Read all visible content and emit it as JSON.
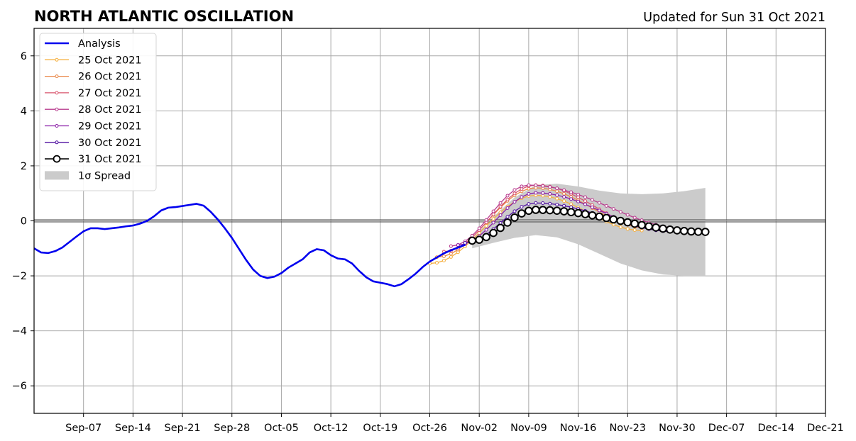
{
  "chart_data": {
    "type": "line",
    "title": "NORTH ATLANTIC OSCILLATION",
    "subtitle": "Updated for Sun 31 Oct 2021",
    "xlabel": "",
    "ylabel": "",
    "xlim": [
      "2021-08-31",
      "2021-12-21"
    ],
    "ylim": [
      -7,
      7
    ],
    "x_ticks": [
      "Sep-07",
      "Sep-14",
      "Sep-21",
      "Sep-28",
      "Oct-05",
      "Oct-12",
      "Oct-19",
      "Oct-26",
      "Nov-02",
      "Nov-09",
      "Nov-16",
      "Nov-23",
      "Nov-30",
      "Dec-07",
      "Dec-14",
      "Dec-21"
    ],
    "x_tick_dates": [
      "2021-09-07",
      "2021-09-14",
      "2021-09-21",
      "2021-09-28",
      "2021-10-05",
      "2021-10-12",
      "2021-10-19",
      "2021-10-26",
      "2021-11-02",
      "2021-11-09",
      "2021-11-16",
      "2021-11-23",
      "2021-11-30",
      "2021-12-07",
      "2021-12-14",
      "2021-12-21"
    ],
    "y_ticks": [
      "6",
      "4",
      "2",
      "0",
      "−2",
      "−4",
      "−6"
    ],
    "y_tick_values": [
      6,
      4,
      2,
      0,
      -2,
      -4,
      -6
    ],
    "grid": true,
    "legend_position": "top-left",
    "legend": [
      "Analysis",
      "25 Oct 2021",
      "26 Oct 2021",
      "27 Oct 2021",
      "28 Oct 2021",
      "29 Oct 2021",
      "30 Oct 2021",
      "31 Oct 2021",
      "1σ Spread"
    ],
    "analysis": {
      "name": "Analysis",
      "color": "#0000ee",
      "x": [
        "2021-08-31",
        "2021-09-01",
        "2021-09-02",
        "2021-09-03",
        "2021-09-04",
        "2021-09-05",
        "2021-09-06",
        "2021-09-07",
        "2021-09-08",
        "2021-09-09",
        "2021-09-10",
        "2021-09-11",
        "2021-09-12",
        "2021-09-13",
        "2021-09-14",
        "2021-09-15",
        "2021-09-16",
        "2021-09-17",
        "2021-09-18",
        "2021-09-19",
        "2021-09-20",
        "2021-09-21",
        "2021-09-22",
        "2021-09-23",
        "2021-09-24",
        "2021-09-25",
        "2021-09-26",
        "2021-09-27",
        "2021-09-28",
        "2021-09-29",
        "2021-09-30",
        "2021-10-01",
        "2021-10-02",
        "2021-10-03",
        "2021-10-04",
        "2021-10-05",
        "2021-10-06",
        "2021-10-07",
        "2021-10-08",
        "2021-10-09",
        "2021-10-10",
        "2021-10-11",
        "2021-10-12",
        "2021-10-13",
        "2021-10-14",
        "2021-10-15",
        "2021-10-16",
        "2021-10-17",
        "2021-10-18",
        "2021-10-19",
        "2021-10-20",
        "2021-10-21",
        "2021-10-22",
        "2021-10-23",
        "2021-10-24",
        "2021-10-25",
        "2021-10-26",
        "2021-10-27",
        "2021-10-28",
        "2021-10-29",
        "2021-10-30",
        "2021-10-31"
      ],
      "y": [
        -1.0,
        -1.15,
        -1.17,
        -1.1,
        -0.97,
        -0.77,
        -0.57,
        -0.38,
        -0.27,
        -0.27,
        -0.3,
        -0.27,
        -0.24,
        -0.2,
        -0.17,
        -0.1,
        0.0,
        0.17,
        0.38,
        0.48,
        0.5,
        0.54,
        0.58,
        0.62,
        0.55,
        0.33,
        0.05,
        -0.27,
        -0.62,
        -1.02,
        -1.42,
        -1.77,
        -2.0,
        -2.08,
        -2.03,
        -1.9,
        -1.7,
        -1.55,
        -1.4,
        -1.15,
        -1.03,
        -1.07,
        -1.25,
        -1.37,
        -1.4,
        -1.55,
        -1.82,
        -2.05,
        -2.2,
        -2.25,
        -2.3,
        -2.38,
        -2.3,
        -2.12,
        -1.92,
        -1.68,
        -1.48,
        -1.33,
        -1.18,
        -1.07,
        -0.97,
        -0.87
      ]
    },
    "spread": {
      "name": "1σ Spread",
      "color": "#cbcbcb",
      "x": [
        "2021-11-01",
        "2021-11-04",
        "2021-11-07",
        "2021-11-10",
        "2021-11-13",
        "2021-11-16",
        "2021-11-19",
        "2021-11-22",
        "2021-11-25",
        "2021-11-28",
        "2021-12-01",
        "2021-12-04"
      ],
      "upper": [
        -0.65,
        0.15,
        0.85,
        1.3,
        1.35,
        1.25,
        1.1,
        1.0,
        0.97,
        1.0,
        1.08,
        1.2
      ],
      "lower": [
        -1.0,
        -0.8,
        -0.62,
        -0.52,
        -0.6,
        -0.85,
        -1.2,
        -1.55,
        -1.8,
        -1.95,
        -2.0,
        -2.0
      ]
    },
    "series": [
      {
        "name": "25 Oct 2021",
        "color": "#f5b041",
        "start": "2021-10-26",
        "end": "2021-11-25",
        "y0": -1.55,
        "peak_date": "2021-11-10",
        "peak": 0.93,
        "y_end": -0.35
      },
      {
        "name": "26 Oct 2021",
        "color": "#e9894a",
        "start": "2021-10-27",
        "end": "2021-11-26",
        "y0": -1.32,
        "peak_date": "2021-11-10",
        "peak": 1.2,
        "y_end": -0.27
      },
      {
        "name": "27 Oct 2021",
        "color": "#d9546c",
        "start": "2021-10-28",
        "end": "2021-11-27",
        "y0": -1.12,
        "peak_date": "2021-11-10",
        "peak": 1.3,
        "y_end": -0.3
      },
      {
        "name": "28 Oct 2021",
        "color": "#b83b8e",
        "start": "2021-10-29",
        "end": "2021-12-02",
        "y0": -0.92,
        "peak_date": "2021-11-09",
        "peak": 1.3,
        "y_end": -0.32
      },
      {
        "name": "29 Oct 2021",
        "color": "#8b1fa7",
        "start": "2021-10-30",
        "end": "2021-11-29",
        "y0": -0.88,
        "peak_date": "2021-11-10",
        "peak": 1.02,
        "y_end": -0.38
      },
      {
        "name": "30 Oct 2021",
        "color": "#4f0fa0",
        "start": "2021-10-31",
        "end": "2021-11-30",
        "y0": -0.8,
        "peak_date": "2021-11-10",
        "peak": 0.65,
        "y_end": -0.4
      },
      {
        "name": "31 Oct 2021",
        "color": "#000000",
        "start": "2021-11-01",
        "end": "2021-12-04",
        "y0": -0.72,
        "peak_date": "2021-11-10",
        "peak": 0.4,
        "y_end": -0.4
      }
    ]
  }
}
